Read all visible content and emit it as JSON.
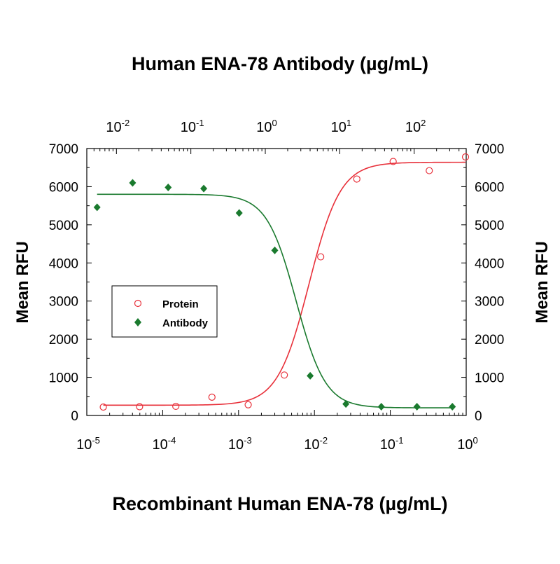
{
  "chart_data": {
    "type": "scatter",
    "title_top_axis": "Human ENA-78 Antibody (µg/mL)",
    "xlabel_bottom": "Recombinant Human ENA-78 (µg/mL)",
    "ylabel_left": "Mean RFU",
    "ylabel_right": "Mean RFU",
    "x_bottom": {
      "scale": "log",
      "lim": [
        1e-05,
        1.0
      ],
      "ticks": [
        {
          "base": "10",
          "exp": "-5"
        },
        {
          "base": "10",
          "exp": "-4"
        },
        {
          "base": "10",
          "exp": "-3"
        },
        {
          "base": "10",
          "exp": "-2"
        },
        {
          "base": "10",
          "exp": "-1"
        },
        {
          "base": "10",
          "exp": "0"
        }
      ]
    },
    "x_top": {
      "scale": "log",
      "lim": [
        0.004,
        500
      ],
      "ticks": [
        {
          "base": "10",
          "exp": "-2"
        },
        {
          "base": "10",
          "exp": "-1"
        },
        {
          "base": "10",
          "exp": "0"
        },
        {
          "base": "10",
          "exp": "1"
        },
        {
          "base": "10",
          "exp": "2"
        }
      ]
    },
    "ylim": [
      0,
      7000
    ],
    "yticks": [
      "0",
      "1000",
      "2000",
      "3000",
      "4000",
      "5000",
      "6000",
      "7000"
    ],
    "legend": {
      "placement": "middle-left",
      "entries": [
        "Protein",
        "Antibody"
      ]
    },
    "series": [
      {
        "name": "Protein",
        "axis": "bottom",
        "marker": "open-circle",
        "color": "#e8303a",
        "x": [
          1.65e-05,
          4.96e-05,
          0.000149,
          0.000446,
          0.00134,
          0.00401,
          0.0121,
          0.0362,
          0.109,
          0.326,
          0.98
        ],
        "y": [
          220,
          230,
          240,
          480,
          280,
          1060,
          4160,
          6200,
          6660,
          6420,
          6780
        ],
        "fit": {
          "bottom": 270,
          "top": 6640,
          "ec50": 0.0085,
          "hill": 2.1
        }
      },
      {
        "name": "Antibody",
        "axis": "top",
        "marker": "filled-diamond",
        "color": "#1a7a2e",
        "x": [
          0.0055,
          0.0165,
          0.0496,
          0.149,
          0.446,
          1.34,
          4.01,
          12.1,
          36.2,
          109,
          326
        ],
        "y": [
          5460,
          6100,
          5980,
          5950,
          5310,
          4330,
          1040,
          300,
          230,
          230,
          230
        ],
        "fit": {
          "bottom": 200,
          "top": 5800,
          "ec50": 2.6,
          "hill": 2.2
        }
      }
    ]
  }
}
